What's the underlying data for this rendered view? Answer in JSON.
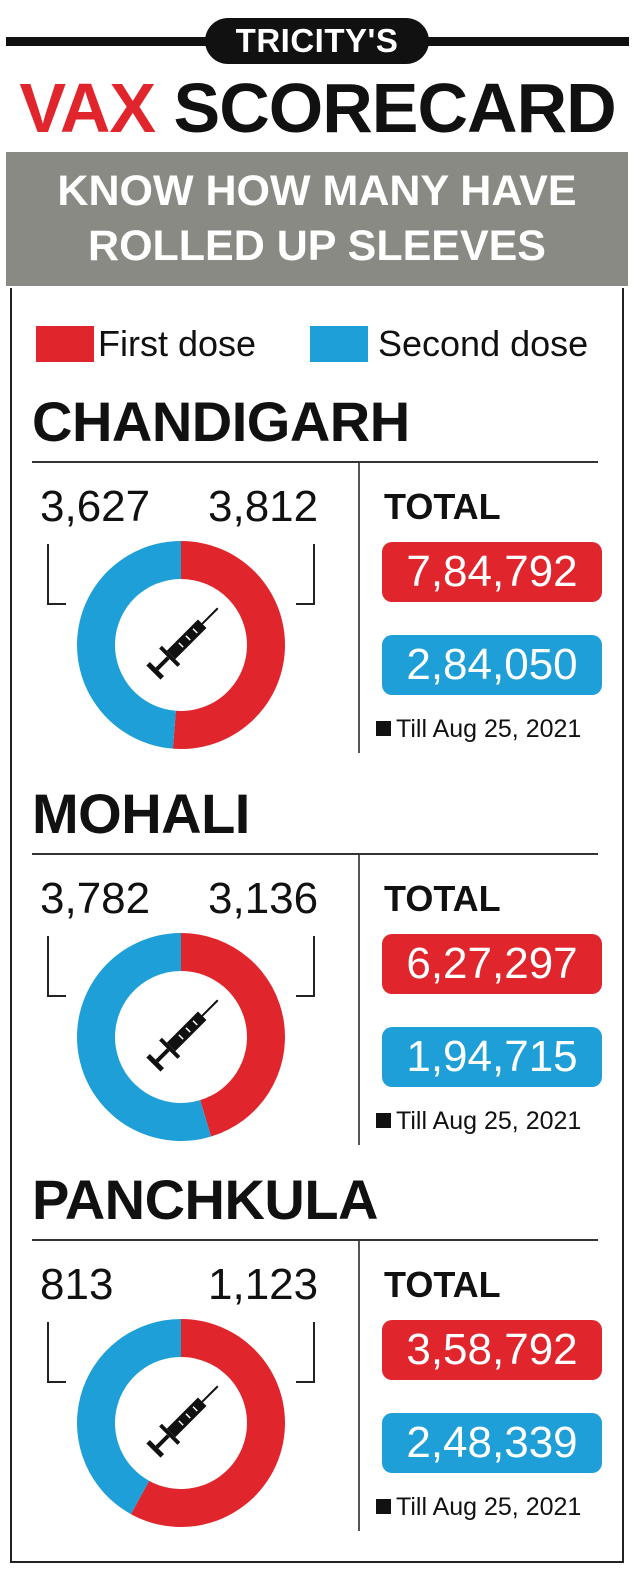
{
  "header": {
    "tag": "TRICITY'S",
    "title_red": "VAX",
    "title_dark": "SCORECARD",
    "subtitle_line1": "KNOW HOW MANY HAVE",
    "subtitle_line2": "ROLLED UP SLEEVES"
  },
  "colors": {
    "first": "#e0262c",
    "second": "#1e9fd8",
    "gray": "#8a8a84"
  },
  "chart_data": [
    {
      "type": "pie",
      "city": "CHANDIGARH",
      "categories": [
        "First dose",
        "Second dose"
      ],
      "values": [
        3812,
        3627
      ],
      "labels": [
        "3,812",
        "3,627"
      ],
      "total_label": "TOTAL",
      "total_first": "7,84,792",
      "total_second": "2,84,050",
      "note": "Till Aug 25, 2021",
      "legend": "top"
    },
    {
      "type": "pie",
      "city": "MOHALI",
      "categories": [
        "First dose",
        "Second dose"
      ],
      "values": [
        3136,
        3782
      ],
      "labels": [
        "3,136",
        "3,782"
      ],
      "total_label": "TOTAL",
      "total_first": "6,27,297",
      "total_second": "1,94,715",
      "note": "Till Aug 25, 2021",
      "legend": "top"
    },
    {
      "type": "pie",
      "city": "PANCHKULA",
      "categories": [
        "First dose",
        "Second dose"
      ],
      "values": [
        1123,
        813
      ],
      "labels": [
        "1,123",
        "813"
      ],
      "total_label": "TOTAL",
      "total_first": "3,58,792",
      "total_second": "2,48,339",
      "note": "Till Aug 25, 2021",
      "legend": "top"
    }
  ],
  "legend": {
    "first": "First dose",
    "second": "Second dose"
  },
  "icons": {
    "center": "syringe-icon",
    "note_marker": "square-bullet-icon"
  }
}
